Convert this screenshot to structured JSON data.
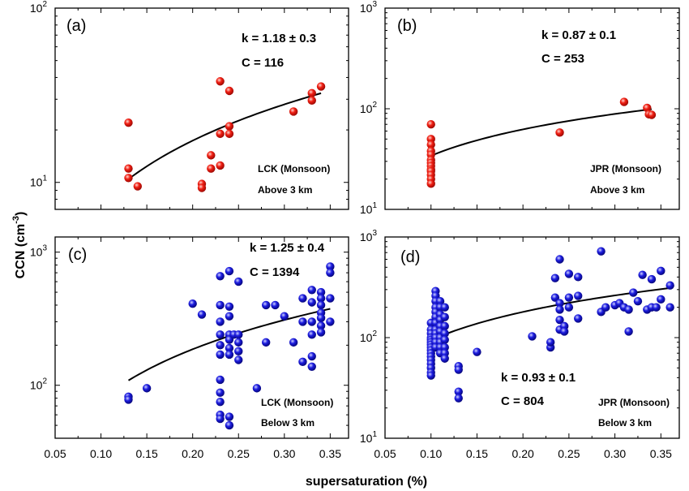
{
  "figure": {
    "ylabel": "CCN (cm",
    "ylabel_sup": "-3",
    "ylabel_close": ")",
    "xlabel": "supersaturation (%)"
  },
  "chart_data": [
    {
      "type": "scatter",
      "panel": "(a)",
      "k_text": "k = 1.18 ± 0.3",
      "c_text": "C = 116",
      "note_line1": "LCK (Monsoon)",
      "note_line2": "Above 3 km",
      "xlim": [
        0.05,
        0.37
      ],
      "ylim": [
        7,
        100
      ],
      "yscale": "log",
      "x_tick_labels": [],
      "y_tick_labels": [
        "10^1",
        "10^2"
      ],
      "marker_color": "#e8120c",
      "fit": {
        "C": 116,
        "k": 1.18,
        "x_range": [
          0.13,
          0.34
        ]
      },
      "x": [
        0.13,
        0.13,
        0.13,
        0.14,
        0.21,
        0.21,
        0.22,
        0.22,
        0.23,
        0.23,
        0.23,
        0.24,
        0.24,
        0.24,
        0.31,
        0.33,
        0.33,
        0.34
      ],
      "y": [
        22,
        12,
        10.6,
        9.5,
        9.8,
        9.3,
        14.3,
        12,
        38,
        19,
        12.5,
        33.5,
        21,
        19,
        25.5,
        32.5,
        29.5,
        35.5
      ]
    },
    {
      "type": "scatter",
      "panel": "(b)",
      "k_text": "k = 0.87 ± 0.1",
      "c_text": "C = 253",
      "note_line1": "JPR (Monsoon)",
      "note_line2": "Above 3 km",
      "xlim": [
        0.05,
        0.37
      ],
      "ylim": [
        10,
        1000
      ],
      "yscale": "log",
      "x_tick_labels": [],
      "y_tick_labels": [
        "10^1",
        "10^2",
        "10^3"
      ],
      "marker_color": "#e8120c",
      "fit": {
        "C": 253,
        "k": 0.87,
        "x_range": [
          0.1,
          0.34
        ]
      },
      "x": [
        0.1,
        0.1,
        0.1,
        0.1,
        0.1,
        0.1,
        0.1,
        0.1,
        0.1,
        0.1,
        0.1,
        0.1,
        0.1,
        0.24,
        0.31,
        0.335,
        0.337,
        0.34
      ],
      "y": [
        70,
        50,
        44,
        38,
        35,
        31,
        29,
        27,
        25,
        24,
        22,
        20,
        18,
        58,
        117,
        102,
        88,
        87
      ]
    },
    {
      "type": "scatter",
      "panel": "(c)",
      "k_text": "k = 1.25 ± 0.4",
      "c_text": "C = 1394",
      "note_line1": "LCK (Monsoon)",
      "note_line2": "Below 3 km",
      "xlim": [
        0.05,
        0.37
      ],
      "ylim": [
        40,
        1300
      ],
      "yscale": "log",
      "x_tick_labels": [
        "0.05",
        "0.10",
        "0.15",
        "0.20",
        "0.25",
        "0.30",
        "0.35"
      ],
      "y_tick_labels": [
        "10^2",
        "10^3"
      ],
      "marker_color": "#1414d4",
      "fit": {
        "C": 1394,
        "k": 1.25,
        "x_range": [
          0.13,
          0.35
        ]
      },
      "x": [
        0.13,
        0.13,
        0.15,
        0.2,
        0.21,
        0.23,
        0.23,
        0.23,
        0.23,
        0.23,
        0.23,
        0.23,
        0.23,
        0.23,
        0.23,
        0.23,
        0.24,
        0.24,
        0.24,
        0.24,
        0.24,
        0.24,
        0.24,
        0.24,
        0.24,
        0.245,
        0.25,
        0.25,
        0.25,
        0.25,
        0.25,
        0.27,
        0.28,
        0.28,
        0.29,
        0.3,
        0.31,
        0.32,
        0.32,
        0.32,
        0.33,
        0.33,
        0.33,
        0.33,
        0.33,
        0.33,
        0.34,
        0.34,
        0.34,
        0.34,
        0.34,
        0.34,
        0.34,
        0.35,
        0.35,
        0.35,
        0.35
      ],
      "y": [
        82,
        78,
        95,
        410,
        340,
        660,
        400,
        300,
        240,
        200,
        170,
        110,
        88,
        75,
        60,
        56,
        720,
        390,
        330,
        240,
        220,
        190,
        170,
        58,
        50,
        240,
        600,
        240,
        210,
        180,
        155,
        95,
        400,
        210,
        400,
        330,
        210,
        450,
        300,
        150,
        520,
        420,
        300,
        240,
        165,
        138,
        500,
        450,
        400,
        350,
        320,
        280,
        250,
        780,
        700,
        450,
        300
      ]
    },
    {
      "type": "scatter",
      "panel": "(d)",
      "k_text": "k = 0.93 ± 0.1",
      "c_text": "C = 804",
      "note_line1": "JPR (Monsoon)",
      "note_line2": "Below 3 km",
      "xlim": [
        0.05,
        0.37
      ],
      "ylim": [
        10,
        1000
      ],
      "yscale": "log",
      "x_tick_labels": [
        "0.05",
        "0.10",
        "0.15",
        "0.20",
        "0.25",
        "0.30",
        "0.35"
      ],
      "y_tick_labels": [
        "10^1",
        "10^2",
        "10^3"
      ],
      "marker_color": "#1414d4",
      "fit": {
        "C": 804,
        "k": 0.93,
        "x_range": [
          0.1,
          0.36
        ]
      },
      "x": [
        0.1,
        0.1,
        0.1,
        0.1,
        0.1,
        0.1,
        0.1,
        0.1,
        0.1,
        0.1,
        0.1,
        0.1,
        0.1,
        0.1,
        0.1,
        0.1,
        0.105,
        0.105,
        0.105,
        0.105,
        0.105,
        0.105,
        0.105,
        0.105,
        0.105,
        0.105,
        0.105,
        0.105,
        0.11,
        0.11,
        0.11,
        0.11,
        0.11,
        0.11,
        0.11,
        0.11,
        0.11,
        0.11,
        0.115,
        0.115,
        0.115,
        0.115,
        0.115,
        0.115,
        0.115,
        0.115,
        0.13,
        0.13,
        0.13,
        0.13,
        0.15,
        0.21,
        0.23,
        0.23,
        0.235,
        0.235,
        0.24,
        0.24,
        0.24,
        0.24,
        0.24,
        0.245,
        0.245,
        0.25,
        0.25,
        0.25,
        0.26,
        0.26,
        0.26,
        0.285,
        0.285,
        0.29,
        0.3,
        0.305,
        0.31,
        0.315,
        0.315,
        0.32,
        0.325,
        0.33,
        0.335,
        0.34,
        0.34,
        0.345,
        0.35,
        0.35,
        0.36,
        0.36
      ],
      "y": [
        140,
        120,
        110,
        100,
        95,
        90,
        85,
        80,
        75,
        70,
        65,
        60,
        55,
        50,
        45,
        42,
        290,
        260,
        230,
        200,
        180,
        160,
        140,
        120,
        110,
        100,
        90,
        80,
        230,
        200,
        170,
        150,
        130,
        115,
        100,
        90,
        80,
        70,
        200,
        160,
        130,
        110,
        95,
        80,
        70,
        62,
        52,
        48,
        29,
        25,
        72,
        103,
        80,
        90,
        390,
        250,
        600,
        220,
        190,
        150,
        120,
        130,
        115,
        430,
        250,
        200,
        400,
        260,
        155,
        720,
        180,
        200,
        210,
        220,
        200,
        190,
        115,
        280,
        230,
        420,
        190,
        380,
        200,
        200,
        460,
        240,
        330,
        200
      ]
    }
  ]
}
